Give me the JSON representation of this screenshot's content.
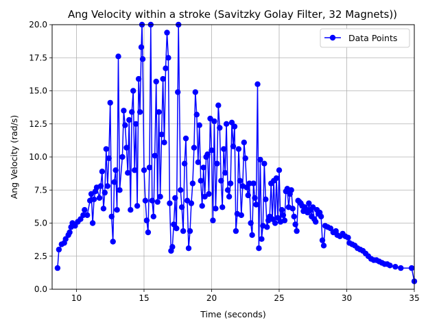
{
  "chart_data": {
    "type": "line",
    "title": "Ang Velocity within a stroke (Savitzky Golay Filter, 32 Magnets))",
    "xlabel": "Time (seconds)",
    "ylabel": "Ang Velocity (rad/s)",
    "xlim": [
      8.2,
      35
    ],
    "ylim": [
      0,
      20
    ],
    "xticks": [
      10,
      15,
      20,
      25,
      30,
      35
    ],
    "yticks": [
      "0.0",
      "2.5",
      "5.0",
      "7.5",
      "10.0",
      "12.5",
      "15.0",
      "17.5",
      "20.0"
    ],
    "grid": true,
    "legend_position": "top-right",
    "colors": {
      "series": "#0000ff",
      "grid": "#b0b0b0"
    },
    "series": [
      {
        "name": "Data Points",
        "marker": "circle",
        "points": [
          [
            8.6,
            1.6
          ],
          [
            8.7,
            3.0
          ],
          [
            8.9,
            3.4
          ],
          [
            9.1,
            3.5
          ],
          [
            9.2,
            3.8
          ],
          [
            9.4,
            4.1
          ],
          [
            9.5,
            4.3
          ],
          [
            9.6,
            4.7
          ],
          [
            9.7,
            5.0
          ],
          [
            9.9,
            4.8
          ],
          [
            10.1,
            5.1
          ],
          [
            10.3,
            5.3
          ],
          [
            10.5,
            5.6
          ],
          [
            10.6,
            6.0
          ],
          [
            10.8,
            5.6
          ],
          [
            11.0,
            6.7
          ],
          [
            11.1,
            7.2
          ],
          [
            11.2,
            5.0
          ],
          [
            11.3,
            6.8
          ],
          [
            11.4,
            7.4
          ],
          [
            11.5,
            7.7
          ],
          [
            11.7,
            6.9
          ],
          [
            11.8,
            7.8
          ],
          [
            11.9,
            8.9
          ],
          [
            12.0,
            6.1
          ],
          [
            12.1,
            7.3
          ],
          [
            12.2,
            10.6
          ],
          [
            12.3,
            7.8
          ],
          [
            12.4,
            9.9
          ],
          [
            12.5,
            14.1
          ],
          [
            12.6,
            5.5
          ],
          [
            12.7,
            3.6
          ],
          [
            12.8,
            8.1
          ],
          [
            12.9,
            9.0
          ],
          [
            13.0,
            6.0
          ],
          [
            13.1,
            17.6
          ],
          [
            13.2,
            7.5
          ],
          [
            13.4,
            10.0
          ],
          [
            13.5,
            13.5
          ],
          [
            13.6,
            12.4
          ],
          [
            13.7,
            10.7
          ],
          [
            13.8,
            8.8
          ],
          [
            13.9,
            12.8
          ],
          [
            14.0,
            6.0
          ],
          [
            14.1,
            13.4
          ],
          [
            14.2,
            15.0
          ],
          [
            14.3,
            9.0
          ],
          [
            14.4,
            12.5
          ],
          [
            14.5,
            6.3
          ],
          [
            14.6,
            15.9
          ],
          [
            14.7,
            13.4
          ],
          [
            14.8,
            18.3
          ],
          [
            14.85,
            20.0
          ],
          [
            14.9,
            17.4
          ],
          [
            15.0,
            9.0
          ],
          [
            15.1,
            6.7
          ],
          [
            15.2,
            5.2
          ],
          [
            15.3,
            4.3
          ],
          [
            15.4,
            9.2
          ],
          [
            15.5,
            20.0
          ],
          [
            15.6,
            6.7
          ],
          [
            15.7,
            5.5
          ],
          [
            15.8,
            10.1
          ],
          [
            15.9,
            15.7
          ],
          [
            16.0,
            6.6
          ],
          [
            16.1,
            13.4
          ],
          [
            16.2,
            7.0
          ],
          [
            16.3,
            11.7
          ],
          [
            16.4,
            15.9
          ],
          [
            16.5,
            11.1
          ],
          [
            16.6,
            16.7
          ],
          [
            16.7,
            19.4
          ],
          [
            16.8,
            17.5
          ],
          [
            16.9,
            6.5
          ],
          [
            17.0,
            2.9
          ],
          [
            17.1,
            3.2
          ],
          [
            17.2,
            4.9
          ],
          [
            17.3,
            6.9
          ],
          [
            17.4,
            4.6
          ],
          [
            17.5,
            14.9
          ],
          [
            17.55,
            20.0
          ],
          [
            17.7,
            7.5
          ],
          [
            17.8,
            6.2
          ],
          [
            17.9,
            4.4
          ],
          [
            18.0,
            9.5
          ],
          [
            18.1,
            11.4
          ],
          [
            18.2,
            6.7
          ],
          [
            18.3,
            3.1
          ],
          [
            18.4,
            4.4
          ],
          [
            18.5,
            6.5
          ],
          [
            18.6,
            8.0
          ],
          [
            18.7,
            10.7
          ],
          [
            18.8,
            14.9
          ],
          [
            18.9,
            13.2
          ],
          [
            19.0,
            9.6
          ],
          [
            19.1,
            12.4
          ],
          [
            19.2,
            8.2
          ],
          [
            19.3,
            6.3
          ],
          [
            19.4,
            9.2
          ],
          [
            19.5,
            7.0
          ],
          [
            19.6,
            10.0
          ],
          [
            19.7,
            10.2
          ],
          [
            19.8,
            7.2
          ],
          [
            19.9,
            12.9
          ],
          [
            20.0,
            10.5
          ],
          [
            20.1,
            5.2
          ],
          [
            20.2,
            12.7
          ],
          [
            20.3,
            6.1
          ],
          [
            20.4,
            9.5
          ],
          [
            20.5,
            13.9
          ],
          [
            20.6,
            12.2
          ],
          [
            20.7,
            8.2
          ],
          [
            20.8,
            6.2
          ],
          [
            20.9,
            10.6
          ],
          [
            21.0,
            8.8
          ],
          [
            21.1,
            12.5
          ],
          [
            21.2,
            7.5
          ],
          [
            21.3,
            7.0
          ],
          [
            21.4,
            8.0
          ],
          [
            21.5,
            12.6
          ],
          [
            21.6,
            10.8
          ],
          [
            21.7,
            12.3
          ],
          [
            21.8,
            4.4
          ],
          [
            21.9,
            5.7
          ],
          [
            22.0,
            10.6
          ],
          [
            22.1,
            8.2
          ],
          [
            22.2,
            5.6
          ],
          [
            22.3,
            7.8
          ],
          [
            22.4,
            11.1
          ],
          [
            22.5,
            9.9
          ],
          [
            22.6,
            7.7
          ],
          [
            22.7,
            7.1
          ],
          [
            22.8,
            8.0
          ],
          [
            22.9,
            5.0
          ],
          [
            23.0,
            4.1
          ],
          [
            23.1,
            8.0
          ],
          [
            23.2,
            6.9
          ],
          [
            23.3,
            6.4
          ],
          [
            23.4,
            15.5
          ],
          [
            23.5,
            3.1
          ],
          [
            23.6,
            9.8
          ],
          [
            23.7,
            3.8
          ],
          [
            23.8,
            4.8
          ],
          [
            23.9,
            9.5
          ],
          [
            24.0,
            6.8
          ],
          [
            24.1,
            4.7
          ],
          [
            24.2,
            5.2
          ],
          [
            24.3,
            5.5
          ],
          [
            24.4,
            8.0
          ],
          [
            24.5,
            5.3
          ],
          [
            24.6,
            8.2
          ],
          [
            24.7,
            5.0
          ],
          [
            24.8,
            8.4
          ],
          [
            24.9,
            5.4
          ],
          [
            25.0,
            9.0
          ],
          [
            25.1,
            5.1
          ],
          [
            25.2,
            6.0
          ],
          [
            25.3,
            5.6
          ],
          [
            25.4,
            5.2
          ],
          [
            25.5,
            7.4
          ],
          [
            25.6,
            7.6
          ],
          [
            25.7,
            6.2
          ],
          [
            25.8,
            7.2
          ],
          [
            25.9,
            7.5
          ],
          [
            26.0,
            6.1
          ],
          [
            26.1,
            5.5
          ],
          [
            26.2,
            4.9
          ],
          [
            26.3,
            4.4
          ],
          [
            26.4,
            6.7
          ],
          [
            26.5,
            6.6
          ],
          [
            26.6,
            6.5
          ],
          [
            26.7,
            6.3
          ],
          [
            26.8,
            5.9
          ],
          [
            26.9,
            6.2
          ],
          [
            27.0,
            6.0
          ],
          [
            27.1,
            5.8
          ],
          [
            27.2,
            6.5
          ],
          [
            27.3,
            6.0
          ],
          [
            27.4,
            5.5
          ],
          [
            27.5,
            6.2
          ],
          [
            27.6,
            5.3
          ],
          [
            27.7,
            5.1
          ],
          [
            27.8,
            6.0
          ],
          [
            27.9,
            5.7
          ],
          [
            28.0,
            5.8
          ],
          [
            28.1,
            5.5
          ],
          [
            28.2,
            3.7
          ],
          [
            28.3,
            3.3
          ],
          [
            28.4,
            4.8
          ],
          [
            28.6,
            4.7
          ],
          [
            28.8,
            4.6
          ],
          [
            29.0,
            4.3
          ],
          [
            29.2,
            4.4
          ],
          [
            29.3,
            4.1
          ],
          [
            29.5,
            4.0
          ],
          [
            29.7,
            4.2
          ],
          [
            29.9,
            4.0
          ],
          [
            30.1,
            3.9
          ],
          [
            30.2,
            3.5
          ],
          [
            30.4,
            3.4
          ],
          [
            30.6,
            3.3
          ],
          [
            30.8,
            3.1
          ],
          [
            31.0,
            3.0
          ],
          [
            31.2,
            2.9
          ],
          [
            31.4,
            2.7
          ],
          [
            31.6,
            2.5
          ],
          [
            31.8,
            2.3
          ],
          [
            32.0,
            2.2
          ],
          [
            32.2,
            2.2
          ],
          [
            32.4,
            2.1
          ],
          [
            32.6,
            2.0
          ],
          [
            32.8,
            1.9
          ],
          [
            33.0,
            1.9
          ],
          [
            33.2,
            1.8
          ],
          [
            33.6,
            1.7
          ],
          [
            34.0,
            1.6
          ],
          [
            34.8,
            1.6
          ],
          [
            35.0,
            0.6
          ]
        ]
      }
    ]
  }
}
